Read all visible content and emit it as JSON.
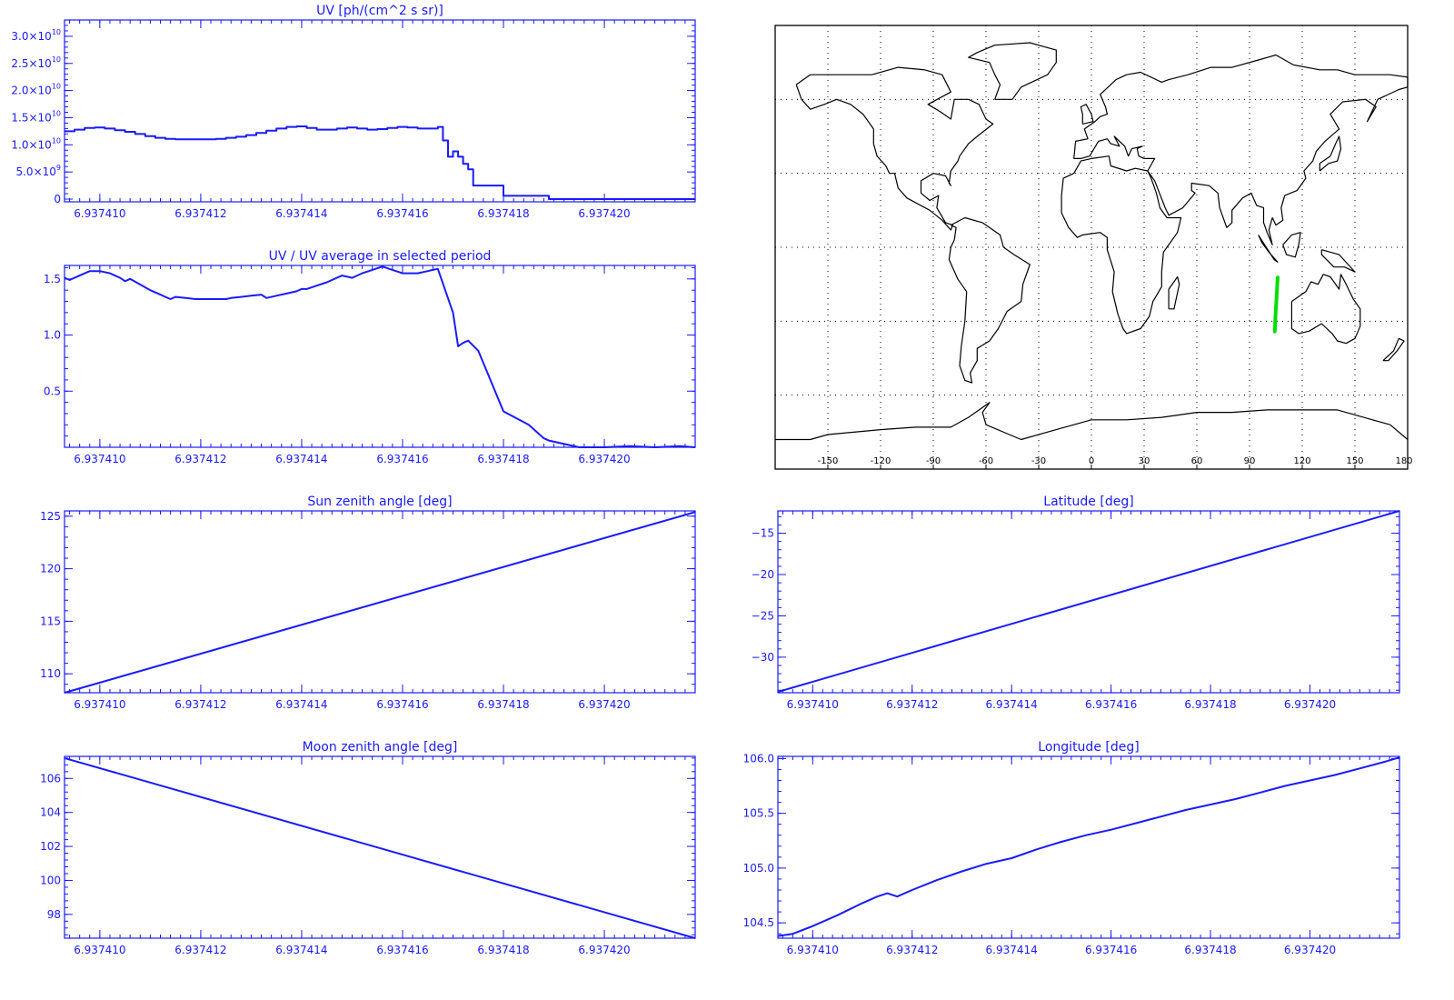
{
  "colors": {
    "plot": "#1a1aff",
    "map_lines": "#000000",
    "track": "#00e000",
    "background": "#ffffff"
  },
  "chart_data": [
    {
      "id": "uv",
      "type": "line",
      "step": true,
      "title": "UV [ph/(cm^2 s sr)]",
      "xlabel": "",
      "ylabel": "",
      "xlim": [
        6.9374093,
        6.9374218
      ],
      "ylim": [
        -500000000.0,
        33000000000.0
      ],
      "x_ticks": [
        6.93741,
        6.937412,
        6.937414,
        6.937416,
        6.937418,
        6.93742
      ],
      "x_tick_labels": [
        "6.937410",
        "6.937412",
        "6.937414",
        "6.937416",
        "6.937418",
        "6.937420"
      ],
      "y_ticks": [
        0,
        5000000000.0,
        10000000000.0,
        15000000000.0,
        20000000000.0,
        25000000000.0,
        30000000000.0
      ],
      "y_tick_labels": [
        {
          "m": "0",
          "e": ""
        },
        {
          "m": "5.0×10",
          "e": "9"
        },
        {
          "m": "1.0×10",
          "e": "10"
        },
        {
          "m": "1.5×10",
          "e": "10"
        },
        {
          "m": "2.0×10",
          "e": "10"
        },
        {
          "m": "2.5×10",
          "e": "10"
        },
        {
          "m": "3.0×10",
          "e": "10"
        }
      ],
      "series": [
        {
          "x": [
            6.9374093,
            6.9374095,
            6.9374097,
            6.9374099,
            6.9374101,
            6.9374103,
            6.9374105,
            6.9374107,
            6.9374109,
            6.9374111,
            6.9374113,
            6.9374115,
            6.9374117,
            6.9374119,
            6.9374121,
            6.9374123,
            6.9374125,
            6.9374127,
            6.9374129,
            6.9374131,
            6.9374133,
            6.9374135,
            6.9374137,
            6.9374139,
            6.9374141,
            6.9374143,
            6.9374145,
            6.9374147,
            6.9374149,
            6.9374151,
            6.9374153,
            6.9374155,
            6.9374157,
            6.9374159,
            6.9374161,
            6.9374163,
            6.9374165,
            6.9374167,
            6.9374168,
            6.9374169,
            6.937417,
            6.9374171,
            6.9374172,
            6.9374173,
            6.9374174,
            6.9374176,
            6.937418,
            6.9374189,
            6.93742,
            6.937421,
            6.9374218
          ],
          "y": [
            12500000000.0,
            12800000000.0,
            13100000000.0,
            13200000000.0,
            13000000000.0,
            12700000000.0,
            12400000000.0,
            12000000000.0,
            11600000000.0,
            11300000000.0,
            11100000000.0,
            11000000000.0,
            11000000000.0,
            11000000000.0,
            11000000000.0,
            11100000000.0,
            11300000000.0,
            11500000000.0,
            11800000000.0,
            12200000000.0,
            12600000000.0,
            13000000000.0,
            13300000000.0,
            13400000000.0,
            13100000000.0,
            12800000000.0,
            12800000000.0,
            13000000000.0,
            13200000000.0,
            13000000000.0,
            12800000000.0,
            12900000000.0,
            13100000000.0,
            13300000000.0,
            13200000000.0,
            13000000000.0,
            13000000000.0,
            13300000000.0,
            10800000000.0,
            7800000000.0,
            8800000000.0,
            7800000000.0,
            6500000000.0,
            5500000000.0,
            2500000000.0,
            2500000000.0,
            600000000.0,
            0.0,
            0.0,
            0.0,
            0.0
          ]
        }
      ]
    },
    {
      "id": "uv_ratio",
      "type": "line",
      "title": "UV / UV average in selected period",
      "xlabel": "",
      "ylabel": "",
      "xlim": [
        6.9374093,
        6.9374218
      ],
      "ylim": [
        0,
        1.62
      ],
      "x_ticks": [
        6.93741,
        6.937412,
        6.937414,
        6.937416,
        6.937418,
        6.93742
      ],
      "x_tick_labels": [
        "6.937410",
        "6.937412",
        "6.937414",
        "6.937416",
        "6.937418",
        "6.937420"
      ],
      "y_ticks": [
        0.5,
        1.0,
        1.5
      ],
      "y_tick_labels": [
        {
          "m": "0.5",
          "e": ""
        },
        {
          "m": "1.0",
          "e": ""
        },
        {
          "m": "1.5",
          "e": ""
        }
      ],
      "series": [
        {
          "x": [
            6.9374093,
            6.9374094,
            6.9374096,
            6.9374098,
            6.93741,
            6.9374102,
            6.9374104,
            6.9374105,
            6.9374106,
            6.9374108,
            6.937411,
            6.9374112,
            6.9374113,
            6.9374114,
            6.9374115,
            6.9374117,
            6.9374119,
            6.9374121,
            6.9374123,
            6.9374125,
            6.9374126,
            6.9374128,
            6.937413,
            6.9374132,
            6.9374133,
            6.9374135,
            6.9374137,
            6.9374139,
            6.937414,
            6.9374141,
            6.9374143,
            6.9374145,
            6.9374146,
            6.9374148,
            6.937415,
            6.9374152,
            6.9374154,
            6.9374156,
            6.9374158,
            6.937416,
            6.9374163,
            6.9374165,
            6.9374166,
            6.9374167,
            6.937417,
            6.9374171,
            6.9374172,
            6.9374173,
            6.9374175,
            6.937418,
            6.9374185,
            6.9374188,
            6.9374189,
            6.9374195,
            6.93742,
            6.9374205,
            6.937421,
            6.9374215,
            6.9374218
          ],
          "y": [
            1.51,
            1.49,
            1.53,
            1.57,
            1.57,
            1.55,
            1.51,
            1.48,
            1.5,
            1.45,
            1.4,
            1.36,
            1.34,
            1.32,
            1.34,
            1.33,
            1.32,
            1.32,
            1.32,
            1.32,
            1.33,
            1.34,
            1.35,
            1.36,
            1.33,
            1.35,
            1.37,
            1.39,
            1.41,
            1.41,
            1.44,
            1.47,
            1.49,
            1.53,
            1.51,
            1.55,
            1.58,
            1.61,
            1.58,
            1.55,
            1.55,
            1.57,
            1.58,
            1.59,
            1.2,
            0.9,
            0.93,
            0.95,
            0.86,
            0.32,
            0.2,
            0.08,
            0.06,
            0.0,
            0.0,
            0.01,
            0.0,
            0.01,
            0.0
          ]
        }
      ]
    },
    {
      "id": "sun_zenith",
      "type": "line",
      "title": "Sun zenith angle [deg]",
      "xlabel": "",
      "ylabel": "",
      "xlim": [
        6.9374093,
        6.9374218
      ],
      "ylim": [
        108.2,
        125.5
      ],
      "x_ticks": [
        6.93741,
        6.937412,
        6.937414,
        6.937416,
        6.937418,
        6.93742
      ],
      "x_tick_labels": [
        "6.937410",
        "6.937412",
        "6.937414",
        "6.937416",
        "6.937418",
        "6.937420"
      ],
      "y_ticks": [
        110,
        115,
        120,
        125
      ],
      "y_tick_labels": [
        {
          "m": "110",
          "e": ""
        },
        {
          "m": "115",
          "e": ""
        },
        {
          "m": "120",
          "e": ""
        },
        {
          "m": "125",
          "e": ""
        }
      ],
      "series": [
        {
          "x": [
            6.9374093,
            6.9374218
          ],
          "y": [
            108.2,
            125.4
          ]
        }
      ]
    },
    {
      "id": "moon_zenith",
      "type": "line",
      "title": "Moon zenith angle [deg]",
      "xlabel": "",
      "ylabel": "",
      "xlim": [
        6.9374093,
        6.9374218
      ],
      "ylim": [
        96.6,
        107.3
      ],
      "x_ticks": [
        6.93741,
        6.937412,
        6.937414,
        6.937416,
        6.937418,
        6.93742
      ],
      "x_tick_labels": [
        "6.937410",
        "6.937412",
        "6.937414",
        "6.937416",
        "6.937418",
        "6.937420"
      ],
      "y_ticks": [
        98,
        100,
        102,
        104,
        106
      ],
      "y_tick_labels": [
        {
          "m": "98",
          "e": ""
        },
        {
          "m": "100",
          "e": ""
        },
        {
          "m": "102",
          "e": ""
        },
        {
          "m": "104",
          "e": ""
        },
        {
          "m": "106",
          "e": ""
        }
      ],
      "series": [
        {
          "x": [
            6.9374093,
            6.9374218
          ],
          "y": [
            107.2,
            96.6
          ]
        }
      ]
    },
    {
      "id": "latitude",
      "type": "line",
      "title": "Latitude [deg]",
      "xlabel": "",
      "ylabel": "",
      "xlim": [
        6.9374093,
        6.9374218
      ],
      "ylim": [
        -34.3,
        -12.3
      ],
      "x_ticks": [
        6.93741,
        6.937412,
        6.937414,
        6.937416,
        6.937418,
        6.93742
      ],
      "x_tick_labels": [
        "6.937410",
        "6.937412",
        "6.937414",
        "6.937416",
        "6.937418",
        "6.937420"
      ],
      "y_ticks": [
        -30,
        -25,
        -20,
        -15
      ],
      "y_tick_labels": [
        {
          "m": "−30",
          "e": ""
        },
        {
          "m": "−25",
          "e": ""
        },
        {
          "m": "−20",
          "e": ""
        },
        {
          "m": "−15",
          "e": ""
        }
      ],
      "series": [
        {
          "x": [
            6.9374093,
            6.9374218
          ],
          "y": [
            -34.2,
            -12.3
          ]
        }
      ]
    },
    {
      "id": "longitude",
      "type": "line",
      "title": "Longitude [deg]",
      "xlabel": "",
      "ylabel": "",
      "xlim": [
        6.9374093,
        6.9374218
      ],
      "ylim": [
        104.36,
        106.02
      ],
      "x_ticks": [
        6.93741,
        6.937412,
        6.937414,
        6.937416,
        6.937418,
        6.93742
      ],
      "x_tick_labels": [
        "6.937410",
        "6.937412",
        "6.937414",
        "6.937416",
        "6.937418",
        "6.937420"
      ],
      "y_ticks": [
        104.5,
        105.0,
        105.5,
        106.0
      ],
      "y_tick_labels": [
        {
          "m": "104.5",
          "e": ""
        },
        {
          "m": "105.0",
          "e": ""
        },
        {
          "m": "105.5",
          "e": ""
        },
        {
          "m": "106.0",
          "e": ""
        }
      ],
      "series": [
        {
          "x": [
            6.9374093,
            6.9374096,
            6.93741,
            6.9374105,
            6.937411,
            6.9374113,
            6.9374115,
            6.9374117,
            6.937412,
            6.9374125,
            6.937413,
            6.9374135,
            6.937414,
            6.9374145,
            6.937415,
            6.9374155,
            6.937416,
            6.9374165,
            6.937417,
            6.9374175,
            6.937418,
            6.9374185,
            6.937419,
            6.9374195,
            6.93742,
            6.9374205,
            6.937421,
            6.9374215,
            6.9374218
          ],
          "y": [
            104.38,
            104.4,
            104.47,
            104.57,
            104.68,
            104.74,
            104.77,
            104.74,
            104.8,
            104.89,
            104.97,
            105.04,
            105.09,
            105.17,
            105.24,
            105.3,
            105.35,
            105.41,
            105.47,
            105.53,
            105.58,
            105.63,
            105.69,
            105.75,
            105.8,
            105.85,
            105.91,
            105.97,
            106.01
          ]
        }
      ]
    },
    {
      "id": "map",
      "type": "map",
      "projection": "equirectangular",
      "lon_range": [
        -180,
        180
      ],
      "lat_range": [
        -90,
        90
      ],
      "grid_lon": [
        -150,
        -120,
        -90,
        -60,
        -30,
        0,
        30,
        60,
        90,
        120,
        150
      ],
      "grid_lat": [
        -60,
        -30,
        0,
        30,
        60
      ],
      "lon_tick_labels": [
        "-150",
        "-120",
        "-90",
        "-60",
        "-30",
        "0",
        "30",
        "60",
        "90",
        "120",
        "150",
        "180"
      ],
      "track": {
        "lon": [
          104.36,
          104.6,
          104.75,
          105.0,
          105.3,
          105.55,
          105.8,
          106.02
        ],
        "lat": [
          -34.2,
          -31.0,
          -28.0,
          -25.0,
          -21.5,
          -18.0,
          -15.0,
          -12.3
        ]
      }
    }
  ]
}
